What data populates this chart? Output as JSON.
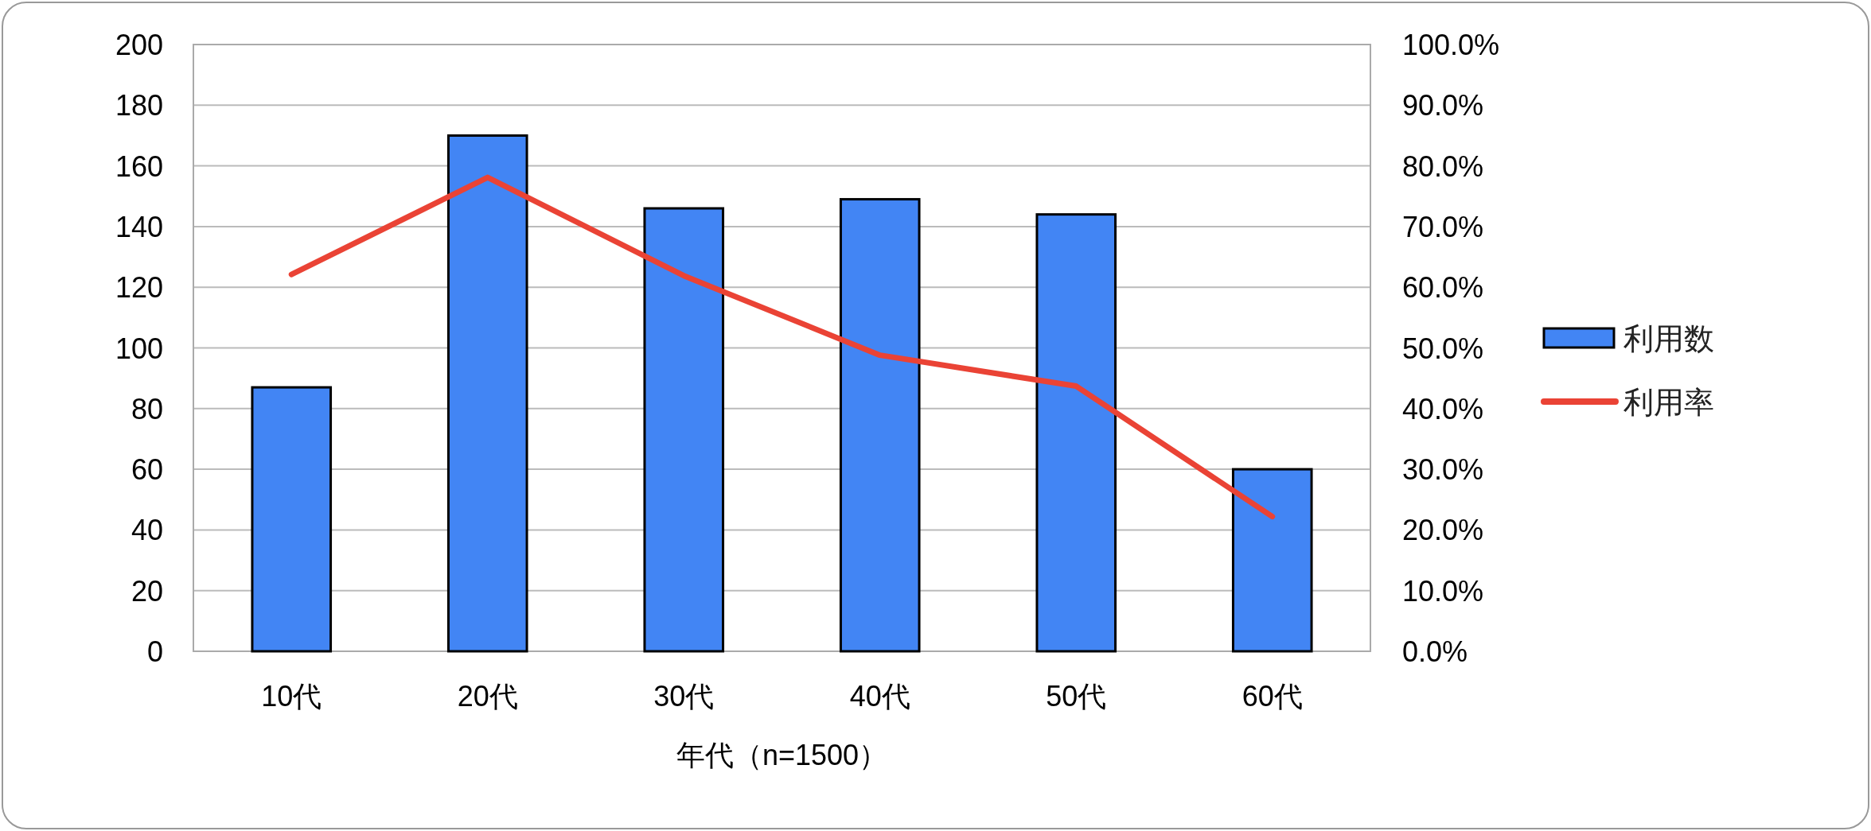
{
  "chart_data": {
    "type": "bar",
    "xlabel": "年代（n=1500）",
    "categories": [
      "10代",
      "20代",
      "30代",
      "40代",
      "50代",
      "60代"
    ],
    "series": [
      {
        "name": "利用数",
        "color": "#4285f4",
        "values": [
          87,
          170,
          146,
          149,
          144,
          60
        ]
      },
      {
        "name": "利用率",
        "type": "line",
        "axis": "y2",
        "color": "#ea4335",
        "values": [
          62.1,
          78.1,
          61.9,
          48.8,
          43.7,
          22.2
        ]
      }
    ],
    "ylim": [
      0,
      200
    ],
    "yticks": [
      0,
      20,
      40,
      60,
      80,
      100,
      120,
      140,
      160,
      180,
      200
    ],
    "y2lim": [
      0,
      100
    ],
    "y2ticks": [
      {
        "value": 0,
        "label": "0.0%"
      },
      {
        "value": 10,
        "label": "10.0%"
      },
      {
        "value": 20,
        "label": "20.0%"
      },
      {
        "value": 30,
        "label": "30.0%"
      },
      {
        "value": 40,
        "label": "40.0%"
      },
      {
        "value": 50,
        "label": "50.0%"
      },
      {
        "value": 60,
        "label": "60.0%"
      },
      {
        "value": 70,
        "label": "70.0%"
      },
      {
        "value": 80,
        "label": "80.0%"
      },
      {
        "value": 90,
        "label": "90.0%"
      },
      {
        "value": 100,
        "label": "100.0%"
      }
    ],
    "grid": "y",
    "legend": "right"
  }
}
